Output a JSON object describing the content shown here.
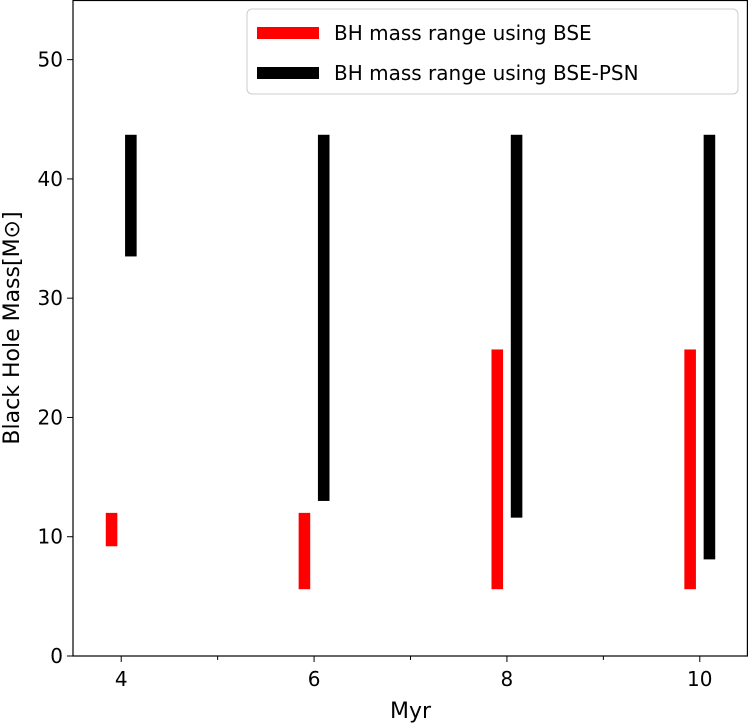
{
  "chart_data": {
    "type": "bar",
    "bar_style": "floating-range",
    "xlabel": "Myr",
    "ylabel": "Black Hole Mass[M⊙]",
    "xlim": [
      3.5,
      10.5
    ],
    "ylim": [
      0,
      55
    ],
    "x_ticks": [
      {
        "value": 4,
        "label": "4"
      },
      {
        "value": 6,
        "label": "6"
      },
      {
        "value": 8,
        "label": "8"
      },
      {
        "value": 10,
        "label": "10"
      }
    ],
    "x_minor_ticks": [
      5,
      7,
      9
    ],
    "y_ticks": [
      {
        "value": 0,
        "label": "0"
      },
      {
        "value": 10,
        "label": "10"
      },
      {
        "value": 20,
        "label": "20"
      },
      {
        "value": 30,
        "label": "30"
      },
      {
        "value": 40,
        "label": "40"
      },
      {
        "value": 50,
        "label": "50"
      }
    ],
    "grid": false,
    "legend_position": "top-right",
    "series": [
      {
        "name": "BH mass range using BSE",
        "color": "#ff0000",
        "offset": -0.1,
        "ranges": [
          {
            "x": 4,
            "low": 9.2,
            "high": 12.0
          },
          {
            "x": 6,
            "low": 5.6,
            "high": 12.0
          },
          {
            "x": 8,
            "low": 5.6,
            "high": 25.7
          },
          {
            "x": 10,
            "low": 5.6,
            "high": 25.7
          }
        ]
      },
      {
        "name": "BH mass range using BSE-PSN",
        "color": "#000000",
        "offset": 0.1,
        "ranges": [
          {
            "x": 4,
            "low": 33.5,
            "high": 43.7
          },
          {
            "x": 6,
            "low": 13.0,
            "high": 43.7
          },
          {
            "x": 8,
            "low": 11.6,
            "high": 43.7
          },
          {
            "x": 10,
            "low": 8.1,
            "high": 43.7
          }
        ]
      }
    ]
  }
}
